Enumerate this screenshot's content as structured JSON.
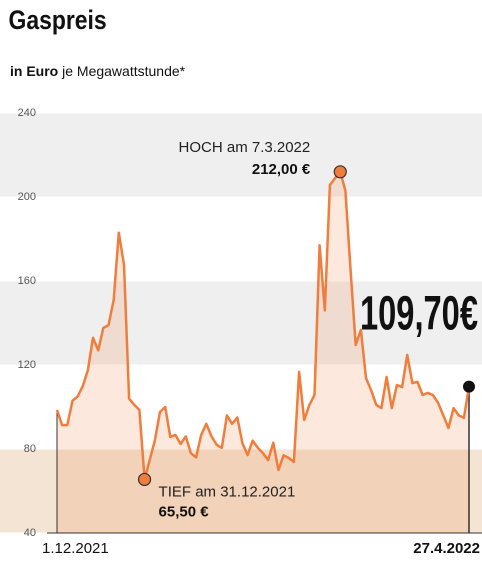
{
  "chart_data": {
    "type": "line",
    "title": "Gaspreis",
    "subtitle_bold": "in Euro",
    "subtitle": "je Megawattstunde*",
    "color": "#f07d3c",
    "categories": [
      "1.12.2021",
      null,
      null,
      null,
      null,
      null,
      null,
      null,
      null,
      null,
      null,
      null,
      null,
      null,
      null,
      null,
      null,
      null,
      null,
      null,
      null,
      null,
      null,
      null,
      null,
      null,
      null,
      null,
      null,
      null,
      null,
      null,
      null,
      null,
      null,
      null,
      null,
      null,
      null,
      null,
      null,
      null,
      null,
      null,
      null,
      null,
      null,
      null,
      null,
      null,
      null,
      null,
      null,
      null,
      null,
      null,
      null,
      null,
      null,
      null,
      null,
      null,
      null,
      null,
      null,
      null,
      null,
      null,
      null,
      null,
      null,
      null,
      null,
      null,
      null,
      null,
      null,
      null,
      null,
      null,
      "27.4.2022"
    ],
    "values": [
      98.6,
      91.4,
      91.4,
      103,
      105,
      110,
      117.6,
      133,
      127,
      137.6,
      139,
      151,
      183,
      167.6,
      104,
      101,
      98.6,
      65.5,
      74.7,
      84,
      97.6,
      100,
      85.7,
      86.7,
      82.4,
      86,
      78,
      76,
      86.7,
      92,
      86,
      82,
      80.5,
      96,
      92,
      95,
      82.8,
      77.1,
      84,
      80.5,
      78,
      74.7,
      83,
      70,
      77,
      75.7,
      73.8,
      116.7,
      93.8,
      101,
      105.7,
      177,
      146,
      205.7,
      209,
      212,
      203,
      165,
      129.5,
      136.7,
      113.8,
      108,
      101,
      99.5,
      114.3,
      99.5,
      110.5,
      109.5,
      124.8,
      111.4,
      112,
      105.7,
      106.7,
      105.7,
      102,
      96,
      90,
      99.5,
      96,
      94.8,
      109.7
    ],
    "value_labels": [
      null,
      null,
      null,
      null,
      null,
      null,
      null,
      null,
      null,
      null,
      null,
      null,
      null,
      null,
      null,
      null,
      null,
      "65,50 €",
      null,
      null,
      null,
      null,
      null,
      null,
      null,
      null,
      null,
      null,
      null,
      null,
      null,
      null,
      null,
      null,
      null,
      null,
      null,
      null,
      null,
      null,
      null,
      null,
      null,
      null,
      null,
      null,
      null,
      null,
      null,
      null,
      null,
      null,
      null,
      null,
      null,
      "212,00 €",
      null,
      null,
      null,
      null,
      null,
      null,
      null,
      null,
      null,
      null,
      null,
      null,
      null,
      null,
      null,
      null,
      null,
      null,
      null,
      null,
      null,
      null,
      null,
      null,
      "109,70€"
    ],
    "annotations": [
      "TIEF am 31.12.2021",
      "HOCH am 7.3.2022"
    ],
    "ylim": [
      40,
      240
    ],
    "yticks": [
      40,
      80,
      120,
      160,
      200,
      240
    ]
  }
}
